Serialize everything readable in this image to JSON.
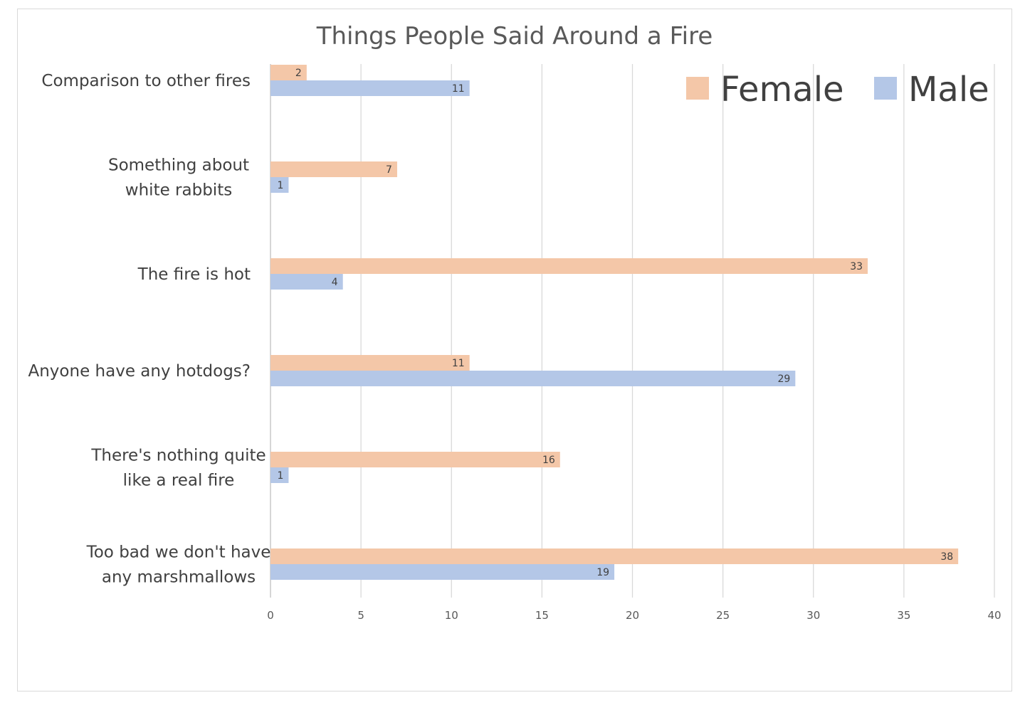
{
  "chart_data": {
    "type": "bar",
    "orientation": "horizontal",
    "title": "Things People Said Around a Fire",
    "categories": [
      [
        "Comparison to other fires"
      ],
      [
        "Something about",
        "white rabbits"
      ],
      [
        "The fire is hot"
      ],
      [
        "Anyone have any hotdogs?"
      ],
      [
        "There's nothing quite",
        "like a real fire"
      ],
      [
        "Too bad we don't have",
        "any marshmallows"
      ]
    ],
    "series": [
      {
        "name": "Female",
        "color": "#f4c7a8",
        "values": [
          2,
          7,
          33,
          11,
          16,
          38
        ]
      },
      {
        "name": "Male",
        "color": "#b4c7e7",
        "values": [
          11,
          1,
          4,
          29,
          1,
          19
        ]
      }
    ],
    "xlim": [
      0,
      40
    ],
    "xticks": [
      0,
      5,
      10,
      15,
      20,
      25,
      30,
      35,
      40
    ],
    "grid": true,
    "legend": "top-right",
    "data_labels": true
  }
}
